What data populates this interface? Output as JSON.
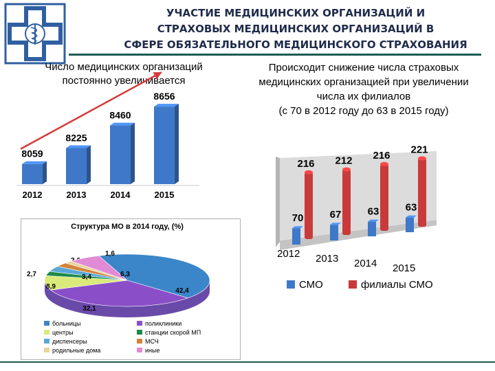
{
  "header": {
    "title_lines": [
      "УЧАСТИЕ МЕДИЦИНСКИХ ОРГАНИЗАЦИЙ  И",
      "СТРАХОВЫХ МЕДИЦИНСКИХ ОРГАНИЗАЦИЙ В",
      "СФЕРЕ ОБЯЗАТЕЛЬНОГО МЕДИЦИНСКОГО СТРАХОВАНИЯ"
    ]
  },
  "left_caption": [
    "Число медицинских организаций",
    "постоянно увеличивается"
  ],
  "right_caption": [
    "Происходит снижение числа страховых",
    "медицинских организацией при увеличении",
    "числа их филиалов",
    "(с 70 в 2012 году до 63 в 2015 году)"
  ],
  "colors": {
    "title": "#1f2b4a",
    "rule": "#1c5a52",
    "bar_blue": "#3f78c8",
    "bar_red": "#c93a3a",
    "arrow": "#d63a3a"
  },
  "chart_data": [
    {
      "type": "bar",
      "categories": [
        "2012",
        "2013",
        "2014",
        "2015"
      ],
      "values": [
        8059,
        8225,
        8460,
        8656
      ],
      "title": "",
      "xlabel": "",
      "ylabel": "",
      "grid": false
    },
    {
      "type": "pie",
      "title": "Структура МО в 2014 году, (%)",
      "labels": [
        "больницы",
        "поликлиники",
        "центры",
        "станции скорой МП",
        "диспенсеры",
        "МСЧ",
        "родильные дома",
        "иные"
      ],
      "values": [
        42.4,
        32.1,
        8.9,
        2.7,
        3.4,
        2.6,
        1.6,
        6.3
      ],
      "value_labels": [
        "42,4",
        "32,1",
        "8,9",
        "2,7",
        "3,4",
        "2,6",
        "1,6",
        "6,3"
      ],
      "colors": [
        "#3a86c8",
        "#8a4fc8",
        "#d9ea7a",
        "#1e8a4a",
        "#5aa8d8",
        "#d2853a",
        "#e8d6a0",
        "#e18ad6"
      ],
      "legend_placement": "bottom"
    },
    {
      "type": "bar",
      "categories": [
        "2012",
        "2013",
        "2014",
        "2015"
      ],
      "series": [
        {
          "name": "СМО",
          "values": [
            70,
            67,
            63,
            63
          ]
        },
        {
          "name": "филиалы СМО",
          "values": [
            216,
            212,
            216,
            221
          ]
        }
      ],
      "title": "",
      "legend_placement": "bottom",
      "grid": false
    }
  ]
}
